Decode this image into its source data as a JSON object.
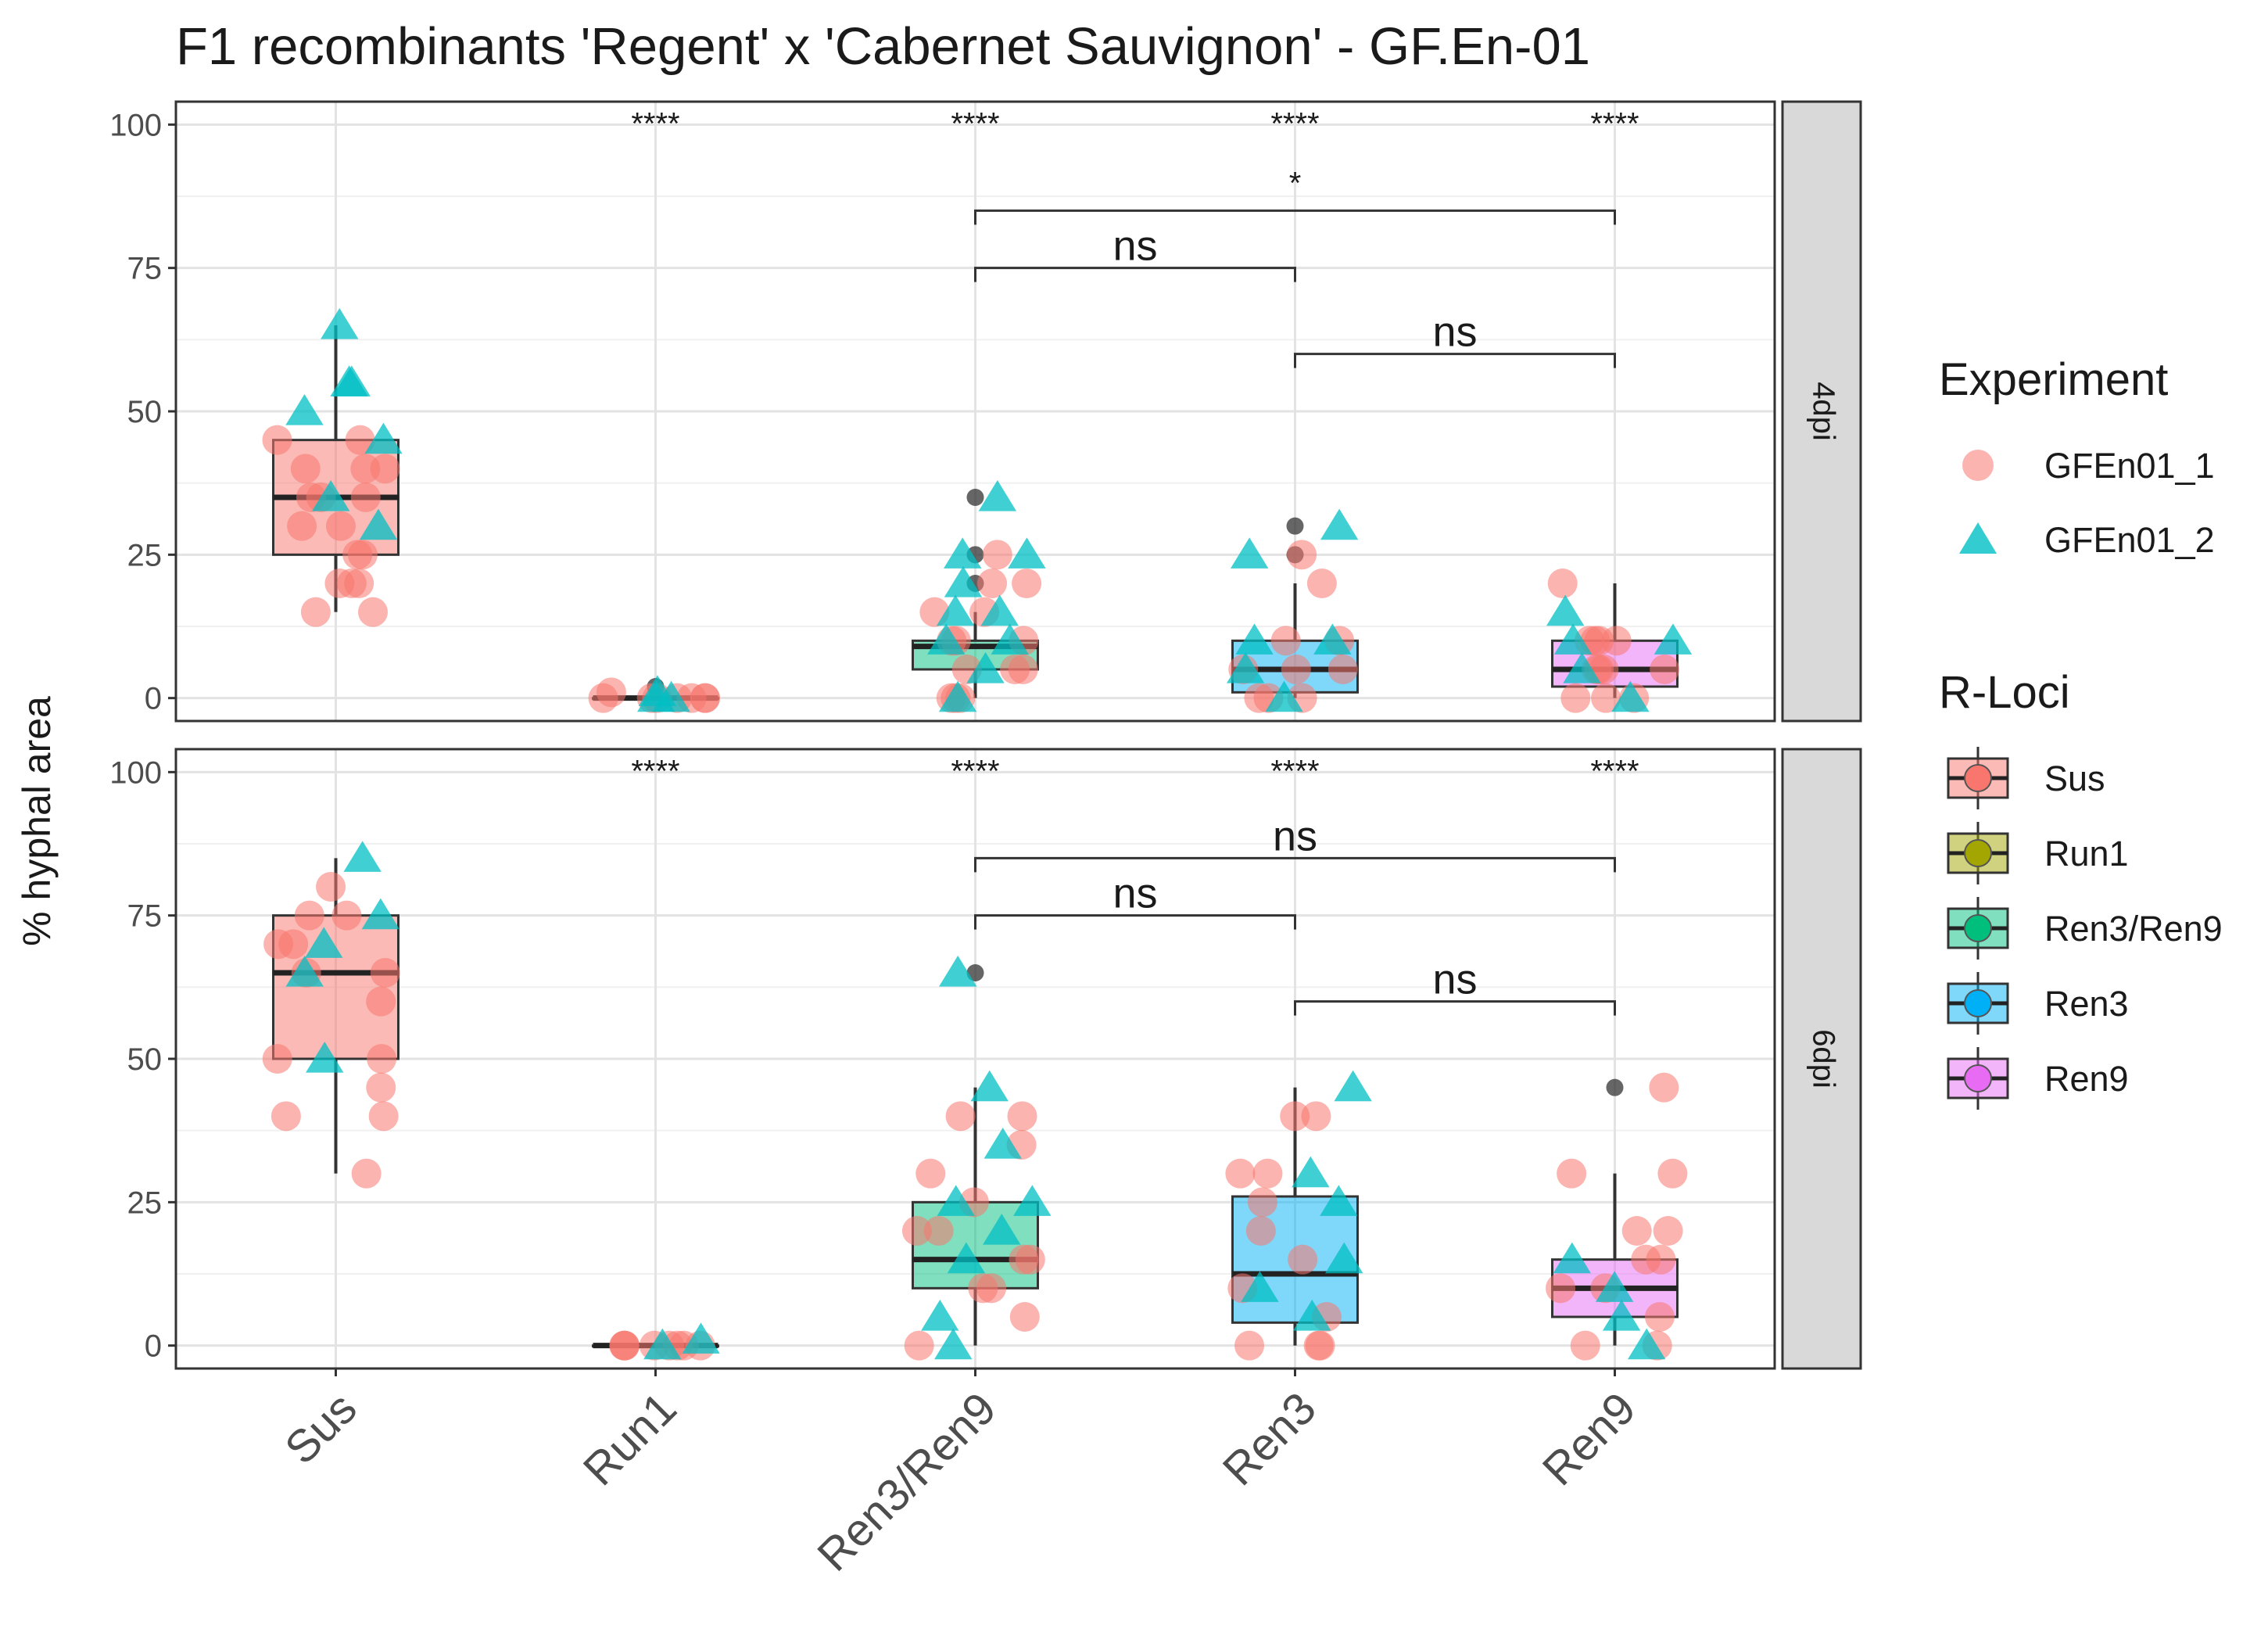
{
  "chart_data": {
    "type": "boxplot",
    "title": "F1 recombinants 'Regent' x 'Cabernet Sauvignon' - GF.En-01",
    "ylabel": "% hyphal area",
    "xlabel": "",
    "ylim": [
      -4,
      104
    ],
    "yticks": [
      0,
      25,
      50,
      75,
      100
    ],
    "categories": [
      "Sus",
      "Run1",
      "Ren3/Ren9",
      "Ren3",
      "Ren9"
    ],
    "grid": true,
    "legend_position": "right",
    "colors": {
      "Sus": "#f8766d",
      "Run1": "#a3a500",
      "Ren3/Ren9": "#00bf7d",
      "Ren3": "#00b0f6",
      "Ren9": "#e76bf3",
      "GFEn01_1": "#f8766d",
      "GFEn01_2": "#00bfc4"
    },
    "legends": {
      "experiment": {
        "title": "Experiment",
        "items": [
          {
            "label": "GFEn01_1",
            "shape": "circle",
            "color": "#f8766d"
          },
          {
            "label": "GFEn01_2",
            "shape": "triangle",
            "color": "#00bfc4"
          }
        ]
      },
      "rloci": {
        "title": "R-Loci",
        "items": [
          {
            "label": "Sus",
            "color": "#f8766d"
          },
          {
            "label": "Run1",
            "color": "#a3a500"
          },
          {
            "label": "Ren3/Ren9",
            "color": "#00bf7d"
          },
          {
            "label": "Ren3",
            "color": "#00b0f6"
          },
          {
            "label": "Ren9",
            "color": "#e76bf3"
          }
        ]
      }
    },
    "panels": [
      {
        "strip": "4dpi",
        "boxes": [
          {
            "category": "Sus",
            "q1": 25,
            "median": 35,
            "q3": 45,
            "whisker_low": 15,
            "whisker_high": 65,
            "outliers": []
          },
          {
            "category": "Run1",
            "q1": 0,
            "median": 0,
            "q3": 0,
            "whisker_low": 0,
            "whisker_high": 0,
            "outliers": [
              2
            ]
          },
          {
            "category": "Ren3/Ren9",
            "q1": 5,
            "median": 9,
            "q3": 10,
            "whisker_low": 0,
            "whisker_high": 15,
            "outliers": [
              20,
              25,
              35
            ]
          },
          {
            "category": "Ren3",
            "q1": 1,
            "median": 5,
            "q3": 10,
            "whisker_low": 0,
            "whisker_high": 20,
            "outliers": [
              25,
              30
            ]
          },
          {
            "category": "Ren9",
            "q1": 2,
            "median": 5,
            "q3": 10,
            "whisker_low": 0,
            "whisker_high": 20,
            "outliers": []
          }
        ],
        "points": {
          "GFEn01_1": {
            "Sus": [
              45,
              40,
              35,
              30,
              25,
              20,
              15,
              40,
              35,
              30,
              25,
              20,
              15,
              40,
              35,
              45,
              20
            ],
            "Run1": [
              0,
              0,
              0,
              0,
              0,
              1,
              0,
              0
            ],
            "Ren3/Ren9": [
              25,
              20,
              15,
              10,
              5,
              0,
              10,
              5,
              0,
              15,
              10,
              5,
              0,
              20
            ],
            "Ren3": [
              25,
              20,
              10,
              5,
              0,
              0,
              5,
              10,
              0,
              5
            ],
            "Ren9": [
              20,
              10,
              5,
              0,
              5,
              10,
              0,
              5,
              10,
              5,
              0,
              10
            ]
          },
          "GFEn01_2": {
            "Sus": [
              65,
              55,
              50,
              45,
              35,
              30,
              55
            ],
            "Run1": [
              0,
              1,
              0
            ],
            "Ren3/Ren9": [
              35,
              25,
              20,
              15,
              10,
              5,
              0,
              15,
              25,
              10
            ],
            "Ren3": [
              30,
              25,
              10,
              5,
              0,
              10
            ],
            "Ren9": [
              15,
              10,
              5,
              0,
              10
            ]
          }
        },
        "significance": [
          {
            "category": "Run1",
            "label": "****"
          },
          {
            "category": "Ren3/Ren9",
            "label": "****"
          },
          {
            "category": "Ren3",
            "label": "****"
          },
          {
            "category": "Ren9",
            "label": "****"
          }
        ],
        "brackets": [
          {
            "from": "Ren3/Ren9",
            "to": "Ren9",
            "y": 85,
            "label": "*"
          },
          {
            "from": "Ren3/Ren9",
            "to": "Ren3",
            "y": 75,
            "label": "ns"
          },
          {
            "from": "Ren3",
            "to": "Ren9",
            "y": 60,
            "label": "ns"
          }
        ]
      },
      {
        "strip": "6dpi",
        "boxes": [
          {
            "category": "Sus",
            "q1": 50,
            "median": 65,
            "q3": 75,
            "whisker_low": 30,
            "whisker_high": 85,
            "outliers": []
          },
          {
            "category": "Run1",
            "q1": 0,
            "median": 0,
            "q3": 0,
            "whisker_low": 0,
            "whisker_high": 0,
            "outliers": []
          },
          {
            "category": "Ren3/Ren9",
            "q1": 10,
            "median": 15,
            "q3": 25,
            "whisker_low": 0,
            "whisker_high": 45,
            "outliers": [
              65
            ]
          },
          {
            "category": "Ren3",
            "q1": 4,
            "median": 12.5,
            "q3": 26,
            "whisker_low": 0,
            "whisker_high": 45,
            "outliers": []
          },
          {
            "category": "Ren9",
            "q1": 5,
            "median": 10,
            "q3": 15,
            "whisker_low": 0,
            "whisker_high": 30,
            "outliers": [
              45
            ]
          }
        ],
        "points": {
          "GFEn01_1": {
            "Sus": [
              80,
              75,
              70,
              65,
              60,
              50,
              45,
              40,
              30,
              75,
              70,
              65,
              40,
              50
            ],
            "Run1": [
              0,
              0,
              0,
              0,
              0,
              0,
              0,
              0
            ],
            "Ren3/Ren9": [
              40,
              35,
              30,
              25,
              20,
              15,
              10,
              5,
              0,
              40,
              20,
              15,
              10
            ],
            "Ren3": [
              40,
              30,
              25,
              20,
              15,
              10,
              5,
              0,
              0,
              40,
              30,
              0
            ],
            "Ren9": [
              45,
              30,
              20,
              15,
              10,
              5,
              0,
              30,
              20,
              15,
              10,
              0
            ]
          },
          "GFEn01_2": {
            "Sus": [
              85,
              75,
              70,
              65,
              50
            ],
            "Run1": [
              1,
              0
            ],
            "Ren3/Ren9": [
              65,
              45,
              35,
              25,
              20,
              15,
              5,
              0,
              25
            ],
            "Ren3": [
              45,
              30,
              25,
              15,
              10,
              5
            ],
            "Ren9": [
              15,
              10,
              5,
              0
            ]
          }
        },
        "significance": [
          {
            "category": "Run1",
            "label": "****"
          },
          {
            "category": "Ren3/Ren9",
            "label": "****"
          },
          {
            "category": "Ren3",
            "label": "****"
          },
          {
            "category": "Ren9",
            "label": "****"
          }
        ],
        "brackets": [
          {
            "from": "Ren3/Ren9",
            "to": "Ren9",
            "y": 85,
            "label": "ns"
          },
          {
            "from": "Ren3/Ren9",
            "to": "Ren3",
            "y": 75,
            "label": "ns"
          },
          {
            "from": "Ren3",
            "to": "Ren9",
            "y": 60,
            "label": "ns"
          }
        ]
      }
    ]
  }
}
